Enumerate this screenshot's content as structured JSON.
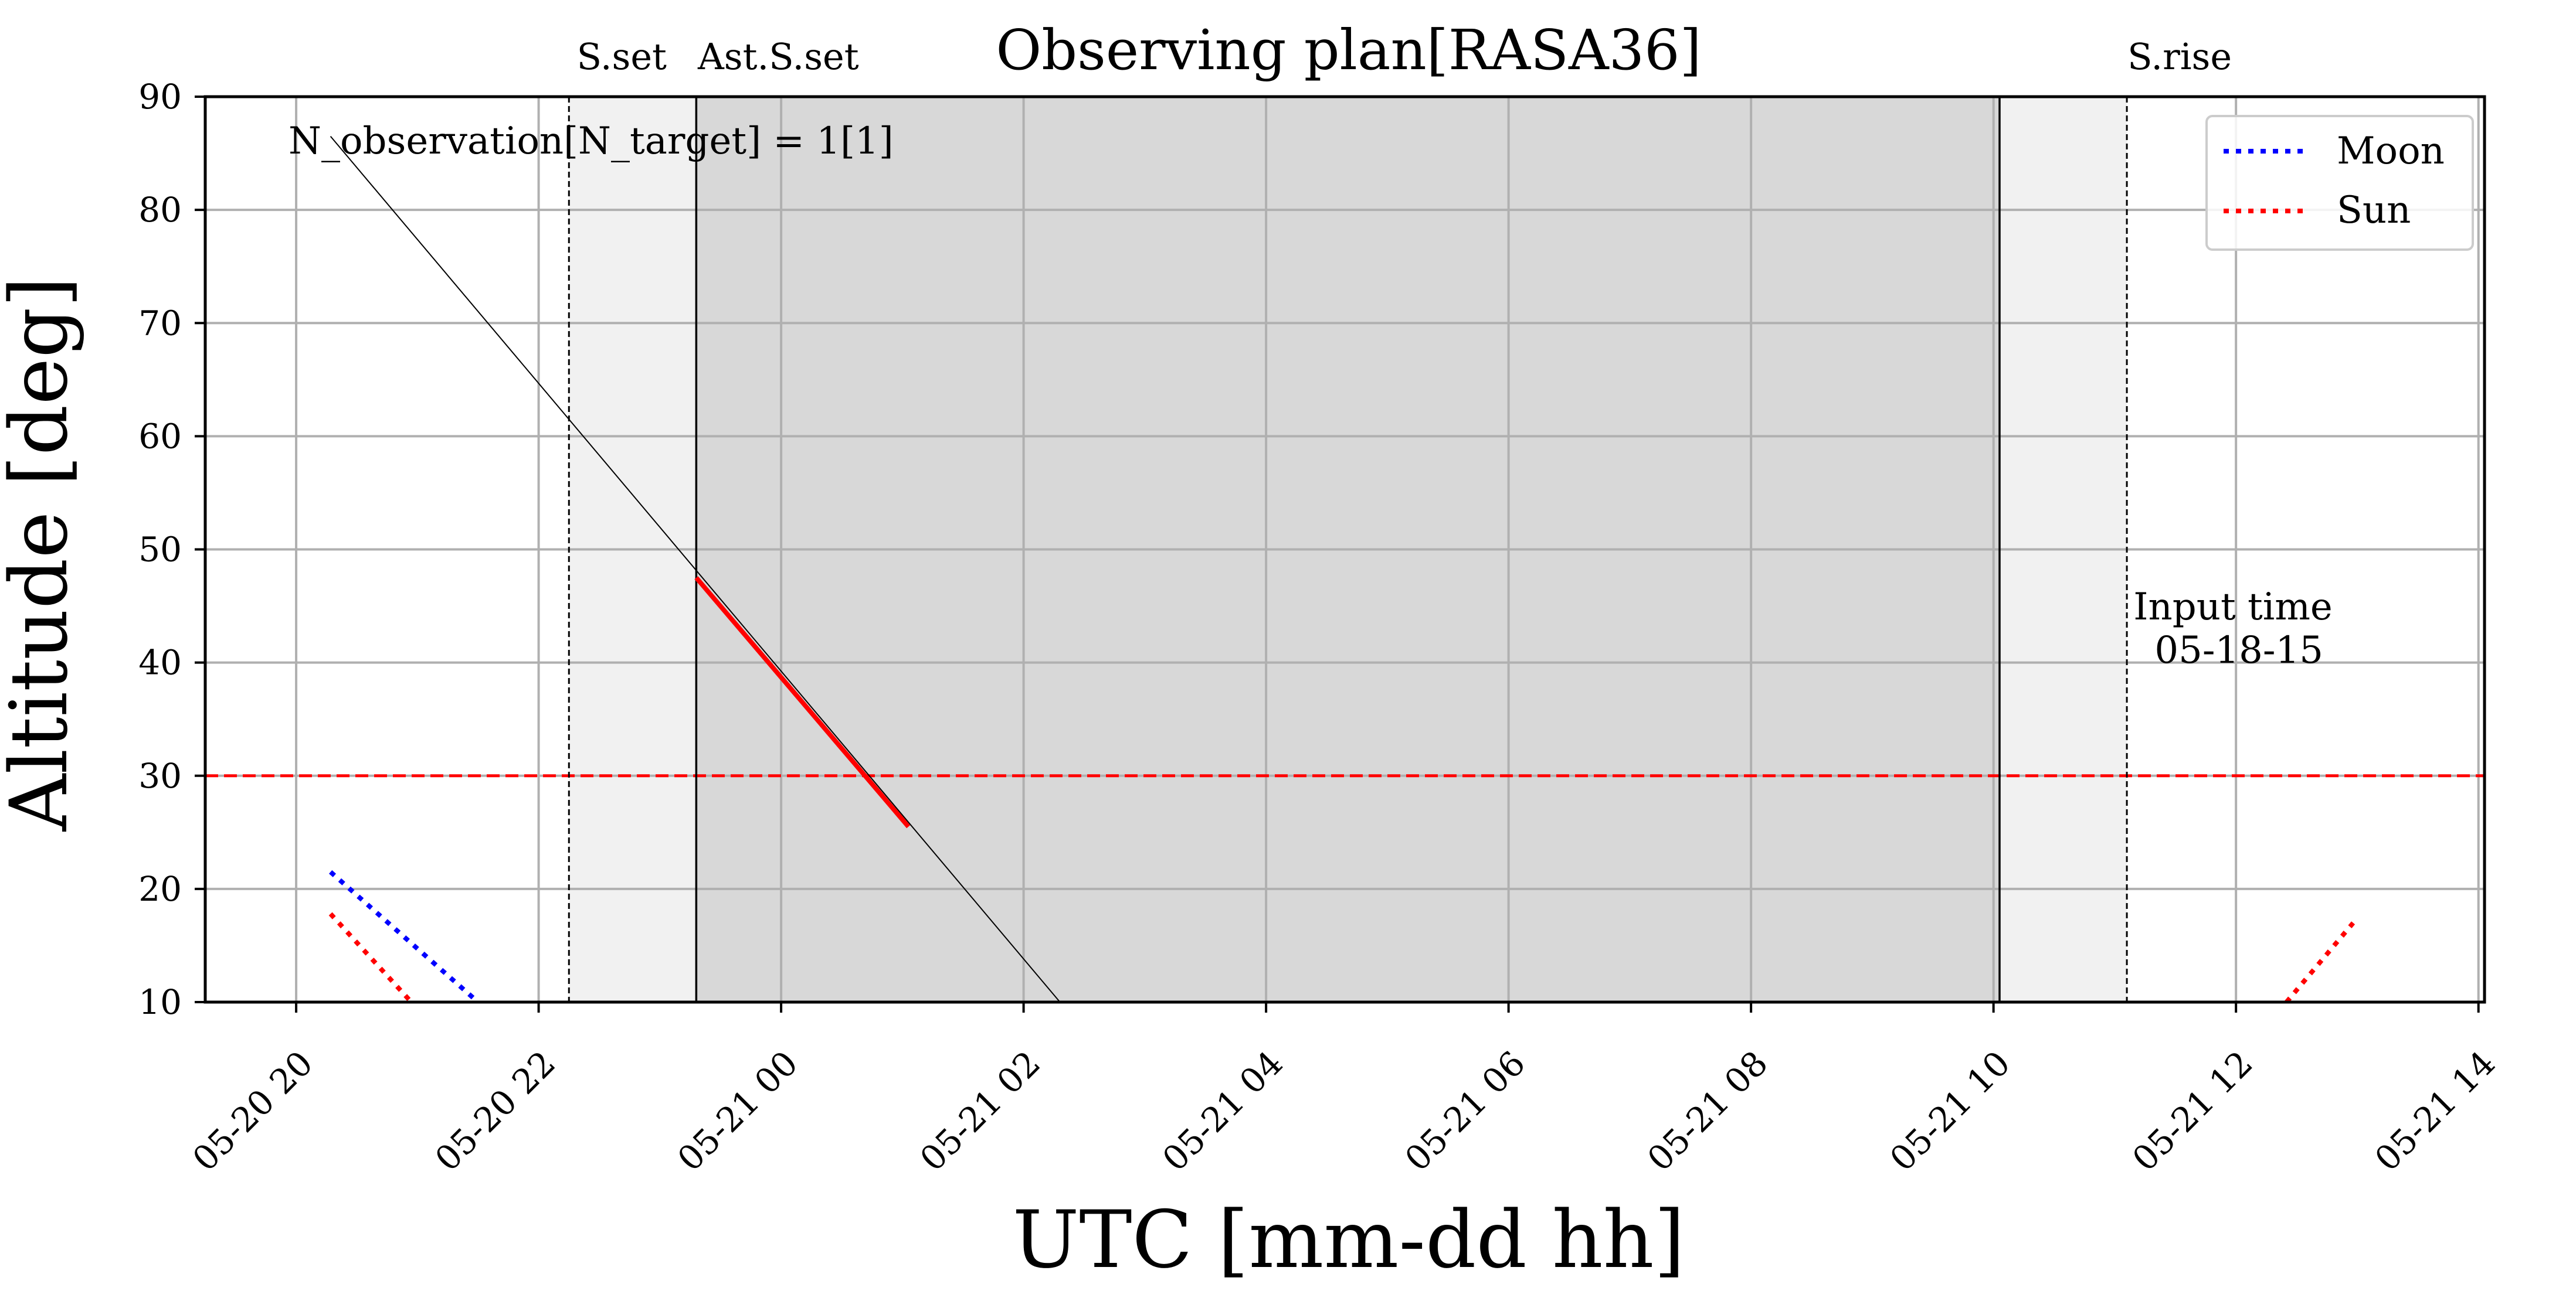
{
  "chart_data": {
    "type": "line",
    "title": "Observing plan[RASA36]",
    "xlabel": "UTC [mm-dd hh]",
    "ylabel": "Altitude [deg]",
    "ylim": [
      10,
      90
    ],
    "xlim": [
      "05-20 19:15",
      "05-21 14:03"
    ],
    "x_ticks": [
      "05-20 20",
      "05-20 22",
      "05-21 00",
      "05-21 02",
      "05-21 04",
      "05-21 06",
      "05-21 08",
      "05-21 10",
      "05-21 12",
      "05-21 14"
    ],
    "y_ticks": [
      10,
      20,
      30,
      40,
      50,
      60,
      70,
      80,
      90
    ],
    "grid": true,
    "legend_position": "top-right",
    "altitude_limit": {
      "y": 30,
      "color": "#ff0000",
      "style": "dashed"
    },
    "twilight_markers": [
      {
        "label": "S.set",
        "time": "05-20 22:15",
        "style": "dashed"
      },
      {
        "label": "Ast.S.set",
        "time": "05-20 23:18",
        "style": "solid"
      },
      {
        "label": "",
        "time": "05-21 10:03",
        "style": "solid"
      },
      {
        "label": "S.rise",
        "time": "05-21 11:06",
        "style": "dashed"
      }
    ],
    "shaded_regions": [
      {
        "start": "05-20 22:15",
        "end": "05-20 23:18",
        "color": "#f1f1f1"
      },
      {
        "start": "05-20 23:18",
        "end": "05-21 10:03",
        "color": "#d8d8d8"
      },
      {
        "start": "05-21 10:03",
        "end": "05-21 11:06",
        "color": "#f1f1f1"
      }
    ],
    "annotations": [
      {
        "text": "N_observation[N_target] = 1[1]",
        "position": "top-left"
      },
      {
        "text_lines": [
          "Input time",
          " 05-18-15"
        ]
      }
    ],
    "series": [
      {
        "key": "target",
        "color": "#000000",
        "style": "thin-solid",
        "points": [
          [
            "05-20 20:17",
            86.5
          ],
          [
            "05-21 02:18",
            10
          ]
        ]
      },
      {
        "key": "observed",
        "color": "#ff0000",
        "style": "thick-solid",
        "points": [
          [
            "05-20 23:18",
            47.5
          ],
          [
            "05-21 01:03",
            25.5
          ]
        ]
      },
      {
        "name": "Moon",
        "color": "#0000ff",
        "style": "dotted",
        "points": [
          [
            "05-20 20:17",
            21.5
          ],
          [
            "05-20 21:30",
            10
          ]
        ]
      },
      {
        "name": "Sun",
        "color": "#ff0000",
        "style": "dotted",
        "points": [
          [
            "05-20 20:17",
            17.8
          ],
          [
            "05-20 20:57",
            10
          ]
        ]
      },
      {
        "key": "sun-rise",
        "color": "#ff0000",
        "style": "dotted",
        "points": [
          [
            "05-21 12:25",
            10
          ],
          [
            "05-21 12:58",
            17
          ]
        ]
      }
    ]
  }
}
